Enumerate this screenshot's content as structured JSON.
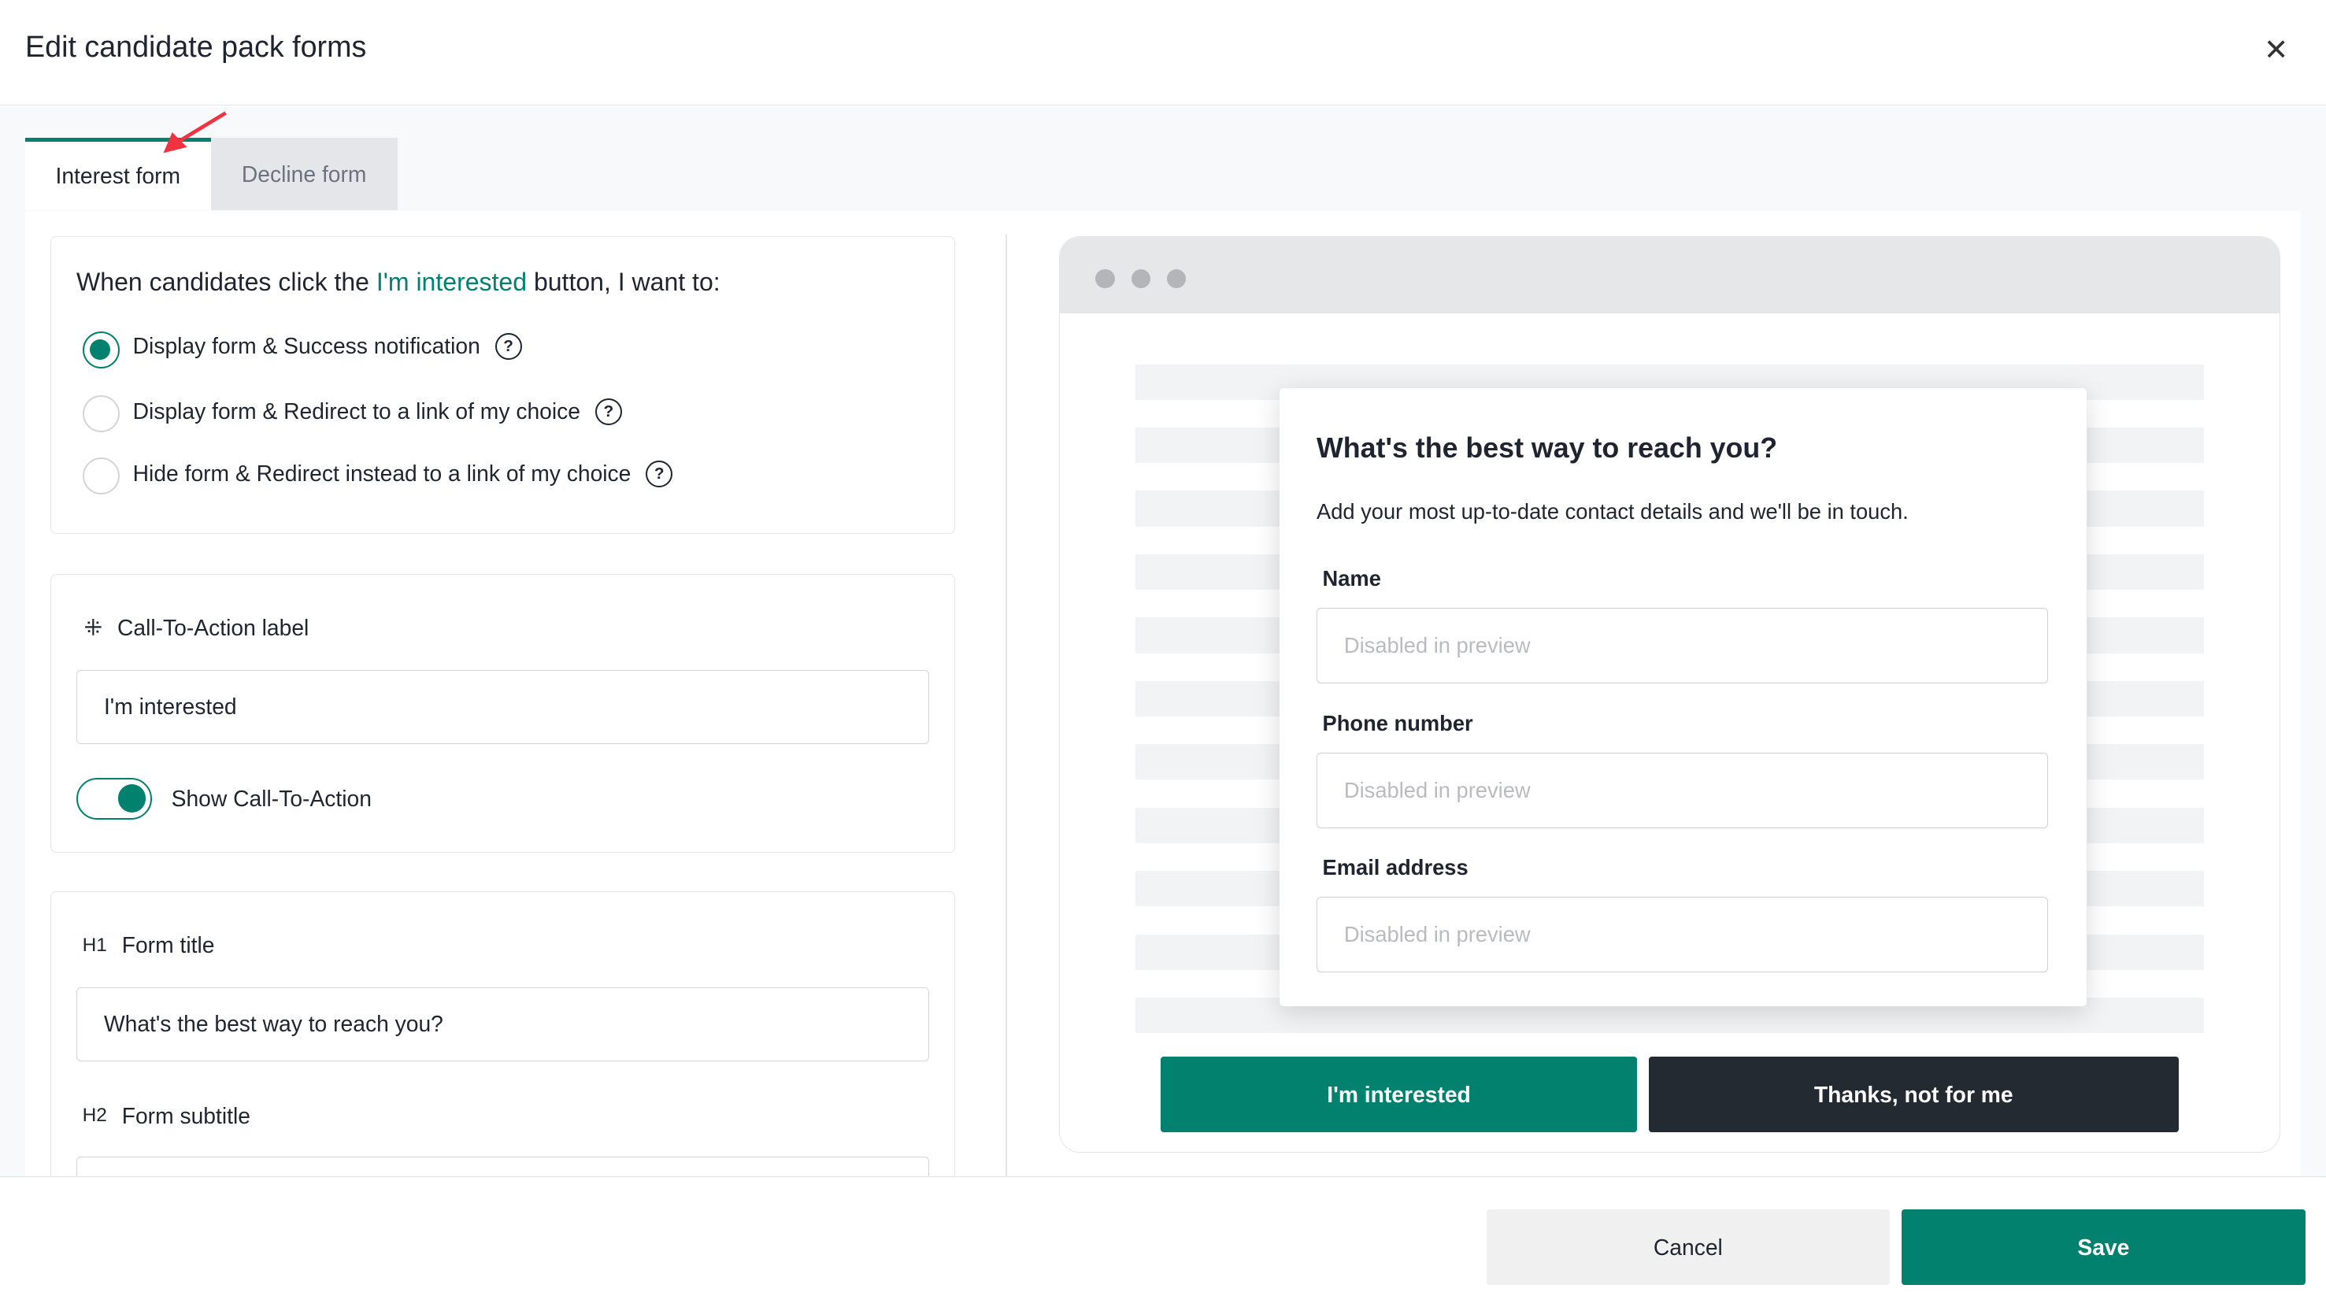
{
  "header": {
    "title": "Edit candidate pack forms",
    "close_icon": "close-icon"
  },
  "tabs": [
    {
      "label": "Interest form",
      "active": true
    },
    {
      "label": "Decline form",
      "active": false
    }
  ],
  "behavior": {
    "question_prefix": "When candidates click the ",
    "question_highlight": "I'm interested",
    "question_suffix": " button, I want to:",
    "options": [
      {
        "label": "Display form & Success notification",
        "selected": true
      },
      {
        "label": "Display form & Redirect to a link of my choice",
        "selected": false
      },
      {
        "label": "Hide form & Redirect instead to a link of my choice",
        "selected": false
      }
    ]
  },
  "cta": {
    "label": "Call-To-Action label",
    "value": "I'm interested",
    "toggle_label": "Show Call-To-Action",
    "toggle_on": true
  },
  "form_title": {
    "badge": "H1",
    "label": "Form title",
    "value": "What's the best way to reach you?"
  },
  "form_subtitle": {
    "badge": "H2",
    "label": "Form subtitle"
  },
  "preview": {
    "title": "What's the best way to reach you?",
    "subtitle": "Add your most up-to-date contact details and we'll be in touch.",
    "fields": [
      {
        "label": "Name",
        "placeholder": "Disabled in preview"
      },
      {
        "label": "Phone number",
        "placeholder": "Disabled in preview"
      },
      {
        "label": "Email address",
        "placeholder": "Disabled in preview"
      }
    ],
    "interested_button": "I'm interested",
    "decline_button": "Thanks, not for me"
  },
  "footer": {
    "cancel": "Cancel",
    "save": "Save"
  },
  "colors": {
    "accent": "#02816f",
    "dark": "#232a31",
    "annotation_arrow": "#ef3340"
  }
}
